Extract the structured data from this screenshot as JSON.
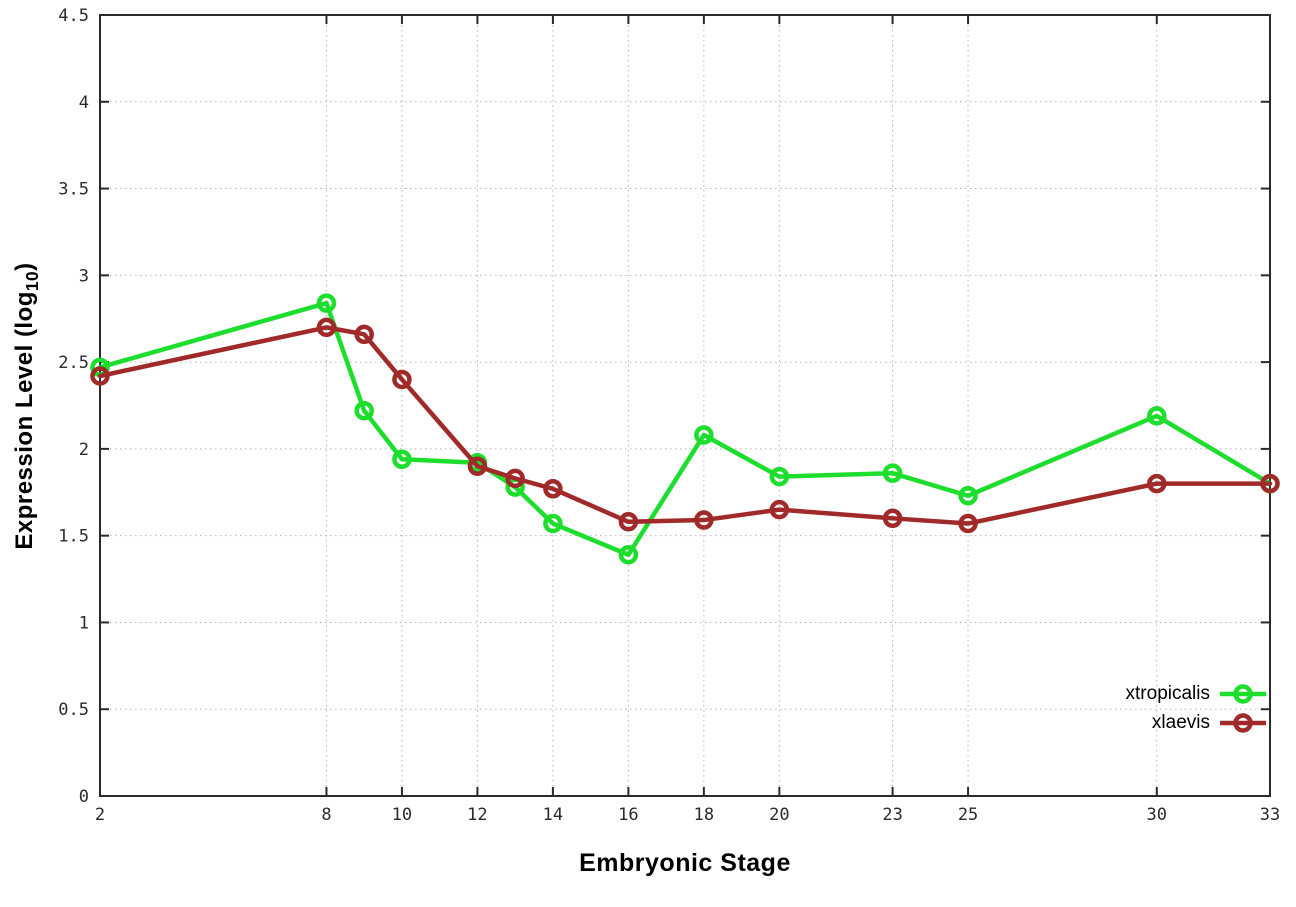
{
  "labels": {
    "ylabel_main": "Expression Level (log",
    "ylabel_sub": "10",
    "ylabel_close": ")",
    "xlabel": "Embryonic Stage"
  },
  "chart_data": {
    "type": "line",
    "title": "",
    "xlabel": "Embryonic Stage",
    "ylabel": "Expression Level (log10)",
    "x": [
      2,
      8,
      9,
      10,
      12,
      13,
      14,
      16,
      18,
      20,
      23,
      25,
      30,
      33
    ],
    "series": [
      {
        "name": "xtropicalis",
        "color": "#1ddd2d",
        "marker": "open-circle",
        "values": [
          2.47,
          2.84,
          2.22,
          1.94,
          1.92,
          1.78,
          1.57,
          1.39,
          2.08,
          1.84,
          1.86,
          1.73,
          2.19,
          1.8
        ]
      },
      {
        "name": "xlaevis",
        "color": "#a02929",
        "marker": "open-circle",
        "values": [
          2.42,
          2.7,
          2.66,
          2.4,
          1.9,
          1.83,
          1.77,
          1.58,
          1.59,
          1.65,
          1.6,
          1.57,
          1.8,
          1.8
        ]
      }
    ],
    "xlim": [
      2,
      33
    ],
    "ylim": [
      0,
      4.5
    ],
    "x_ticks": [
      2,
      8,
      10,
      12,
      14,
      16,
      18,
      20,
      23,
      25,
      30,
      33
    ],
    "x_tick_labels": [
      "2",
      "8",
      "10",
      "12",
      "14",
      "16",
      "18",
      "20",
      "23",
      "25",
      "30",
      "33"
    ],
    "y_ticks": [
      0,
      0.5,
      1,
      1.5,
      2,
      2.5,
      3,
      3.5,
      4,
      4.5
    ],
    "y_tick_labels": [
      "0",
      "0.5",
      "1",
      "1.5",
      "2",
      "2.5",
      "3",
      "3.5",
      "4",
      "4.5"
    ],
    "grid": "dotted",
    "grid_color": "#b5b5b5",
    "border_color": "#2a2a2a",
    "legend_position": "bottom-right"
  }
}
